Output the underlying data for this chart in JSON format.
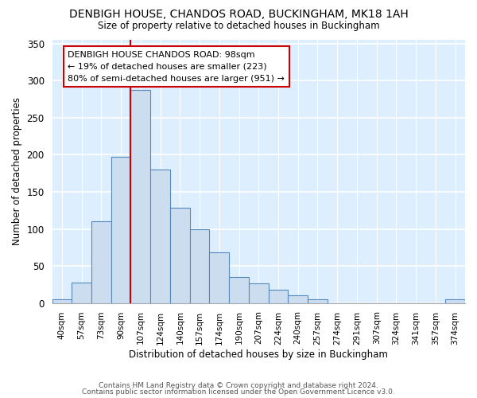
{
  "title": "DENBIGH HOUSE, CHANDOS ROAD, BUCKINGHAM, MK18 1AH",
  "subtitle": "Size of property relative to detached houses in Buckingham",
  "xlabel": "Distribution of detached houses by size in Buckingham",
  "ylabel": "Number of detached properties",
  "bar_color": "#ccddf0",
  "bar_edge_color": "#5588bb",
  "background_color": "#ddeeff",
  "vline_color": "#cc0000",
  "annotation_line1": "DENBIGH HOUSE CHANDOS ROAD: 98sqm",
  "annotation_line2": "← 19% of detached houses are smaller (223)",
  "annotation_line3": "80% of semi-detached houses are larger (951) →",
  "categories": [
    "40sqm",
    "57sqm",
    "73sqm",
    "90sqm",
    "107sqm",
    "124sqm",
    "140sqm",
    "157sqm",
    "174sqm",
    "190sqm",
    "207sqm",
    "224sqm",
    "240sqm",
    "257sqm",
    "274sqm",
    "291sqm",
    "307sqm",
    "324sqm",
    "341sqm",
    "357sqm",
    "374sqm"
  ],
  "values": [
    5,
    28,
    110,
    197,
    287,
    180,
    128,
    100,
    68,
    35,
    27,
    18,
    10,
    5,
    0,
    0,
    0,
    0,
    0,
    0,
    5
  ],
  "ylim_max": 355,
  "yticks": [
    0,
    50,
    100,
    150,
    200,
    250,
    300,
    350
  ],
  "footer1": "Contains HM Land Registry data © Crown copyright and database right 2024.",
  "footer2": "Contains public sector information licensed under the Open Government Licence v3.0."
}
